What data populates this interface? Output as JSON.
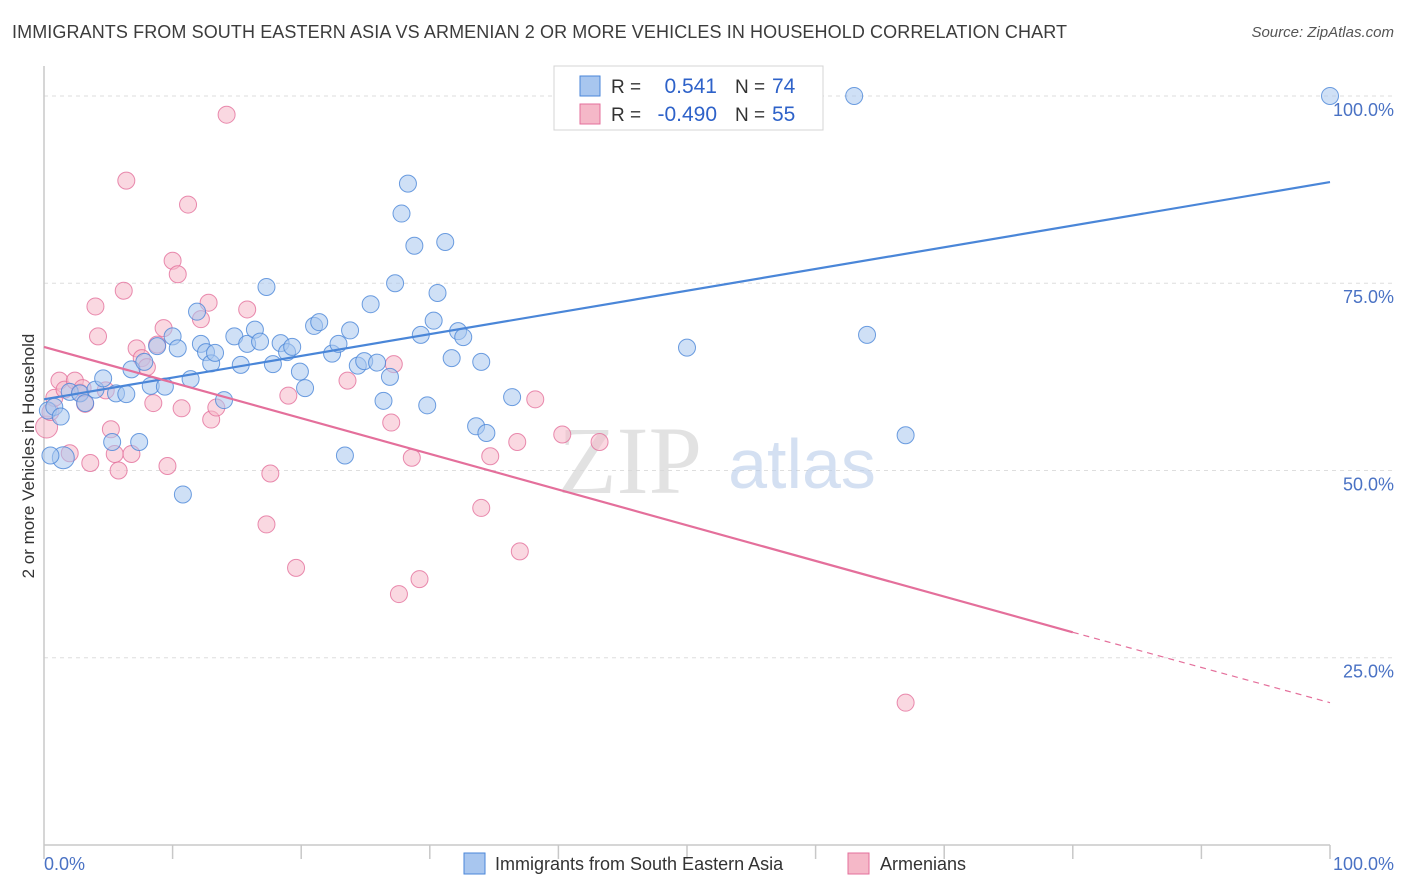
{
  "title": "IMMIGRANTS FROM SOUTH EASTERN ASIA VS ARMENIAN 2 OR MORE VEHICLES IN HOUSEHOLD CORRELATION CHART",
  "source": "Source: ZipAtlas.com",
  "watermark": {
    "zip": "ZIP",
    "atlas": "atlas"
  },
  "legend": {
    "rows": [
      {
        "r_label": "R =",
        "r_value": "0.541",
        "n_label": "N =",
        "n_value": "74",
        "color": "#a8c6ef"
      },
      {
        "r_label": "R =",
        "r_value": "-0.490",
        "n_label": "N =",
        "n_value": "55",
        "color": "#f5b8c8"
      }
    ]
  },
  "chart_data": {
    "type": "scatter",
    "title": "IMMIGRANTS FROM SOUTH EASTERN ASIA VS ARMENIAN 2 OR MORE VEHICLES IN HOUSEHOLD CORRELATION CHART",
    "xlabel": "",
    "ylabel": "2 or more Vehicles in Household",
    "xlim": [
      0,
      100
    ],
    "ylim": [
      0,
      104
    ],
    "x_tick_labels": [
      "0.0%",
      "100.0%"
    ],
    "y_tick_labels": [
      "25.0%",
      "50.0%",
      "75.0%",
      "100.0%"
    ],
    "y_ticks": [
      25,
      50,
      75,
      100
    ],
    "grid": true,
    "legend_position": "top-center",
    "series": [
      {
        "name": "Immigrants from South Eastern Asia",
        "color": "#4a86d8",
        "fill": "#a8c6ef",
        "trend": {
          "x0": 0,
          "y0": 59.5,
          "x1": 100,
          "y1": 88.5
        },
        "points": [
          [
            0.3,
            58.0
          ],
          [
            0.8,
            58.5
          ],
          [
            1.3,
            57.2
          ],
          [
            1.5,
            51.7
          ],
          [
            2.0,
            60.5
          ],
          [
            2.8,
            60.3
          ],
          [
            3.2,
            59.0
          ],
          [
            4.0,
            60.8
          ],
          [
            4.6,
            62.3
          ],
          [
            5.3,
            53.8
          ],
          [
            5.6,
            60.3
          ],
          [
            6.4,
            60.2
          ],
          [
            6.8,
            63.5
          ],
          [
            7.4,
            53.8
          ],
          [
            7.8,
            64.5
          ],
          [
            8.3,
            61.3
          ],
          [
            8.8,
            66.6
          ],
          [
            9.4,
            61.2
          ],
          [
            10.0,
            67.9
          ],
          [
            10.4,
            66.3
          ],
          [
            10.8,
            46.8
          ],
          [
            11.4,
            62.2
          ],
          [
            11.9,
            71.2
          ],
          [
            12.2,
            66.9
          ],
          [
            12.6,
            65.8
          ],
          [
            13.0,
            64.3
          ],
          [
            13.3,
            65.7
          ],
          [
            14.0,
            59.4
          ],
          [
            14.8,
            67.9
          ],
          [
            15.3,
            64.1
          ],
          [
            15.8,
            66.9
          ],
          [
            16.4,
            68.8
          ],
          [
            16.8,
            67.2
          ],
          [
            17.3,
            74.5
          ],
          [
            17.8,
            64.2
          ],
          [
            18.4,
            67.0
          ],
          [
            18.9,
            65.8
          ],
          [
            19.3,
            66.5
          ],
          [
            19.9,
            63.2
          ],
          [
            20.3,
            61.0
          ],
          [
            21.0,
            69.3
          ],
          [
            21.4,
            69.8
          ],
          [
            22.4,
            65.6
          ],
          [
            22.9,
            66.9
          ],
          [
            23.4,
            52.0
          ],
          [
            23.8,
            68.7
          ],
          [
            24.4,
            64.0
          ],
          [
            24.9,
            64.6
          ],
          [
            25.4,
            72.2
          ],
          [
            25.9,
            64.4
          ],
          [
            26.4,
            59.3
          ],
          [
            26.9,
            62.5
          ],
          [
            27.3,
            75.0
          ],
          [
            27.8,
            84.3
          ],
          [
            28.3,
            88.3
          ],
          [
            28.8,
            80.0
          ],
          [
            29.3,
            68.1
          ],
          [
            29.8,
            58.7
          ],
          [
            30.3,
            70.0
          ],
          [
            30.6,
            73.7
          ],
          [
            31.2,
            80.5
          ],
          [
            31.7,
            65.0
          ],
          [
            32.2,
            68.6
          ],
          [
            32.6,
            67.8
          ],
          [
            33.6,
            55.9
          ],
          [
            34.0,
            64.5
          ],
          [
            34.4,
            55.0
          ],
          [
            36.4,
            59.8
          ],
          [
            50.0,
            66.4
          ],
          [
            63.0,
            100.0
          ],
          [
            64.0,
            68.1
          ],
          [
            67.0,
            54.7
          ],
          [
            100,
            100.0
          ],
          [
            0.5,
            52.0
          ]
        ]
      },
      {
        "name": "Armenians",
        "color": "#e46f9b",
        "fill": "#f5b8c8",
        "trend": {
          "x0": 0,
          "y0": 66.5,
          "x1": 80,
          "y1": 28.4,
          "dash_to_x": 100,
          "dash_to_y": 19.0
        },
        "points": [
          [
            0.2,
            55.8
          ],
          [
            0.5,
            57.8
          ],
          [
            0.8,
            59.7
          ],
          [
            1.2,
            62.0
          ],
          [
            1.6,
            60.8
          ],
          [
            2.0,
            52.3
          ],
          [
            2.4,
            62.0
          ],
          [
            2.8,
            60.4
          ],
          [
            3.2,
            58.9
          ],
          [
            3.6,
            51.0
          ],
          [
            4.0,
            71.9
          ],
          [
            4.2,
            67.9
          ],
          [
            4.8,
            60.7
          ],
          [
            5.2,
            55.5
          ],
          [
            5.5,
            52.2
          ],
          [
            5.8,
            50.0
          ],
          [
            6.2,
            74.0
          ],
          [
            6.4,
            88.7
          ],
          [
            6.8,
            52.2
          ],
          [
            7.2,
            66.3
          ],
          [
            7.6,
            65.0
          ],
          [
            8.0,
            63.8
          ],
          [
            8.5,
            59.0
          ],
          [
            8.8,
            66.8
          ],
          [
            9.3,
            69.0
          ],
          [
            9.6,
            50.6
          ],
          [
            10.0,
            78.0
          ],
          [
            10.4,
            76.2
          ],
          [
            10.7,
            58.3
          ],
          [
            11.2,
            85.5
          ],
          [
            12.2,
            70.2
          ],
          [
            12.8,
            72.4
          ],
          [
            13.0,
            56.8
          ],
          [
            13.4,
            58.4
          ],
          [
            14.2,
            97.5
          ],
          [
            15.8,
            71.5
          ],
          [
            17.3,
            42.8
          ],
          [
            17.6,
            49.6
          ],
          [
            19.0,
            60.0
          ],
          [
            19.6,
            37.0
          ],
          [
            23.6,
            62.0
          ],
          [
            27.0,
            56.4
          ],
          [
            27.2,
            64.2
          ],
          [
            27.6,
            33.5
          ],
          [
            28.6,
            51.7
          ],
          [
            29.2,
            35.5
          ],
          [
            34.0,
            45.0
          ],
          [
            34.7,
            51.9
          ],
          [
            36.8,
            53.8
          ],
          [
            37.0,
            39.2
          ],
          [
            38.2,
            59.5
          ],
          [
            40.3,
            54.8
          ],
          [
            43.2,
            53.8
          ],
          [
            67.0,
            19.0
          ],
          [
            3.0,
            61.0
          ]
        ]
      }
    ]
  }
}
